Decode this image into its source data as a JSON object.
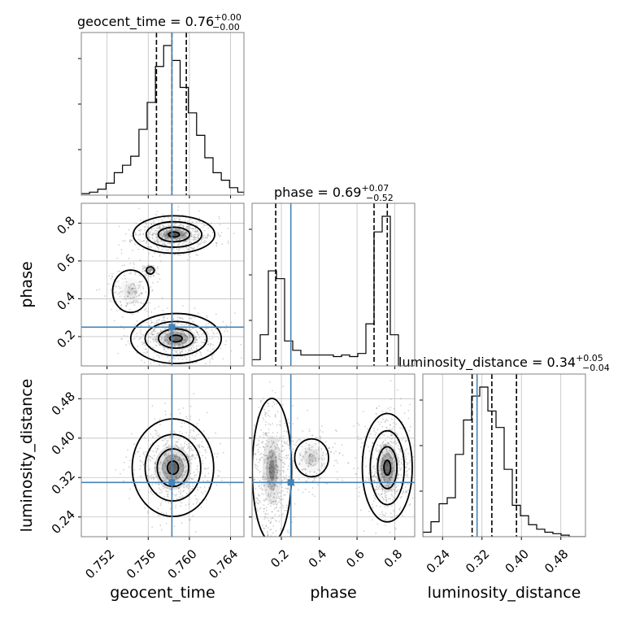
{
  "chart_data": {
    "type": "corner",
    "parameters": [
      "geocent_time",
      "phase",
      "luminosity_distance"
    ],
    "truths": {
      "geocent_time": 0.7583,
      "phase": 0.25,
      "luminosity_distance": 0.31
    },
    "colors": {
      "truth": "#4682b4",
      "hist": "#000000",
      "quantile": "#000000",
      "grid": "#c0c0c0"
    },
    "grid": true,
    "titles": {
      "geocent_time": {
        "label": "geocent_time = 0.76",
        "plus": "+0.00",
        "minus": "−0.00"
      },
      "phase": {
        "label": "phase = 0.69",
        "plus": "+0.07",
        "minus": "−0.52"
      },
      "luminosity_distance": {
        "label": "luminosity_distance = 0.34",
        "plus": "+0.05",
        "minus": "−0.04"
      }
    },
    "axes": {
      "geocent_time": {
        "range": [
          0.7495,
          0.7653
        ],
        "ticks": [
          0.752,
          0.756,
          0.76,
          0.764
        ],
        "tick_labels": [
          "0.752",
          "0.756",
          "0.760",
          "0.764"
        ],
        "label": "geocent_time"
      },
      "phase": {
        "range": [
          0.045,
          0.905
        ],
        "ticks": [
          0.2,
          0.4,
          0.6,
          0.8
        ],
        "tick_labels": [
          "0.2",
          "0.4",
          "0.6",
          "0.8"
        ],
        "label": "phase"
      },
      "luminosity_distance": {
        "range": [
          0.2,
          0.53
        ],
        "ticks": [
          0.24,
          0.32,
          0.4,
          0.48
        ],
        "tick_labels": [
          "0.24",
          "0.32",
          "0.40",
          "0.48"
        ],
        "label": "luminosity_distance"
      }
    },
    "hist_geocent_time": {
      "edges": [
        0.7495,
        0.7503,
        0.7511,
        0.7519,
        0.7527,
        0.7535,
        0.7543,
        0.7551,
        0.7559,
        0.7567,
        0.7575,
        0.7583,
        0.7591,
        0.7599,
        0.7607,
        0.7615,
        0.7623,
        0.7631,
        0.7639,
        0.7647,
        0.7653
      ],
      "counts": [
        0.01,
        0.02,
        0.04,
        0.08,
        0.15,
        0.2,
        0.26,
        0.44,
        0.62,
        0.86,
        1.0,
        0.9,
        0.72,
        0.55,
        0.4,
        0.25,
        0.15,
        0.1,
        0.05,
        0.02
      ],
      "quantiles": [
        0.7568,
        0.7583,
        0.7597
      ]
    },
    "hist_phase": {
      "edges": [
        0.045,
        0.088,
        0.131,
        0.174,
        0.217,
        0.26,
        0.303,
        0.346,
        0.389,
        0.432,
        0.475,
        0.518,
        0.561,
        0.604,
        0.647,
        0.69,
        0.733,
        0.776,
        0.819,
        0.862,
        0.905
      ],
      "counts": [
        0.04,
        0.2,
        0.61,
        0.56,
        0.16,
        0.1,
        0.07,
        0.07,
        0.07,
        0.07,
        0.06,
        0.07,
        0.06,
        0.08,
        0.27,
        0.86,
        0.96,
        0.2,
        0.0,
        0.0
      ],
      "quantiles": [
        0.17,
        0.69,
        0.76
      ]
    },
    "hist_luminosity_distance": {
      "edges": [
        0.2,
        0.2165,
        0.233,
        0.2495,
        0.266,
        0.2825,
        0.299,
        0.3155,
        0.332,
        0.3485,
        0.365,
        0.3815,
        0.398,
        0.4145,
        0.431,
        0.4475,
        0.464,
        0.4805,
        0.497,
        0.5135,
        0.53
      ],
      "counts": [
        0.03,
        0.1,
        0.22,
        0.26,
        0.55,
        0.78,
        0.94,
        1.0,
        0.84,
        0.73,
        0.45,
        0.21,
        0.14,
        0.08,
        0.05,
        0.03,
        0.02,
        0.01,
        0.0,
        0.0
      ],
      "quantiles": [
        0.3,
        0.34,
        0.39
      ]
    },
    "densities": {
      "phase_vs_geocent_time": [
        {
          "cx": 0.7585,
          "cy": 0.74,
          "sx": 0.0018,
          "sy": 0.045,
          "w": 1.0,
          "stds": 3.0
        },
        {
          "cx": 0.7587,
          "cy": 0.19,
          "sx": 0.002,
          "sy": 0.06,
          "w": 0.9,
          "stds": 3.0
        },
        {
          "cx": 0.7543,
          "cy": 0.44,
          "sx": 0.0011,
          "sy": 0.07,
          "w": 0.25,
          "stds": 2.0
        },
        {
          "cx": 0.7562,
          "cy": 0.55,
          "sx": 0.0003,
          "sy": 0.015,
          "w": 0.2,
          "stds": 1.6
        }
      ],
      "luminosity_distance_vs_geocent_time": [
        {
          "cx": 0.7584,
          "cy": 0.34,
          "sx": 0.0018,
          "sy": 0.045,
          "w": 1.0,
          "stds": 3.0
        }
      ],
      "luminosity_distance_vs_phase": [
        {
          "cx": 0.15,
          "cy": 0.335,
          "sx": 0.05,
          "sy": 0.07,
          "w": 0.8,
          "stds": 2.6
        },
        {
          "cx": 0.76,
          "cy": 0.34,
          "sx": 0.06,
          "sy": 0.05,
          "w": 1.0,
          "stds": 3.0
        },
        {
          "cx": 0.36,
          "cy": 0.36,
          "sx": 0.07,
          "sy": 0.03,
          "w": 0.3,
          "stds": 1.6
        }
      ]
    }
  }
}
